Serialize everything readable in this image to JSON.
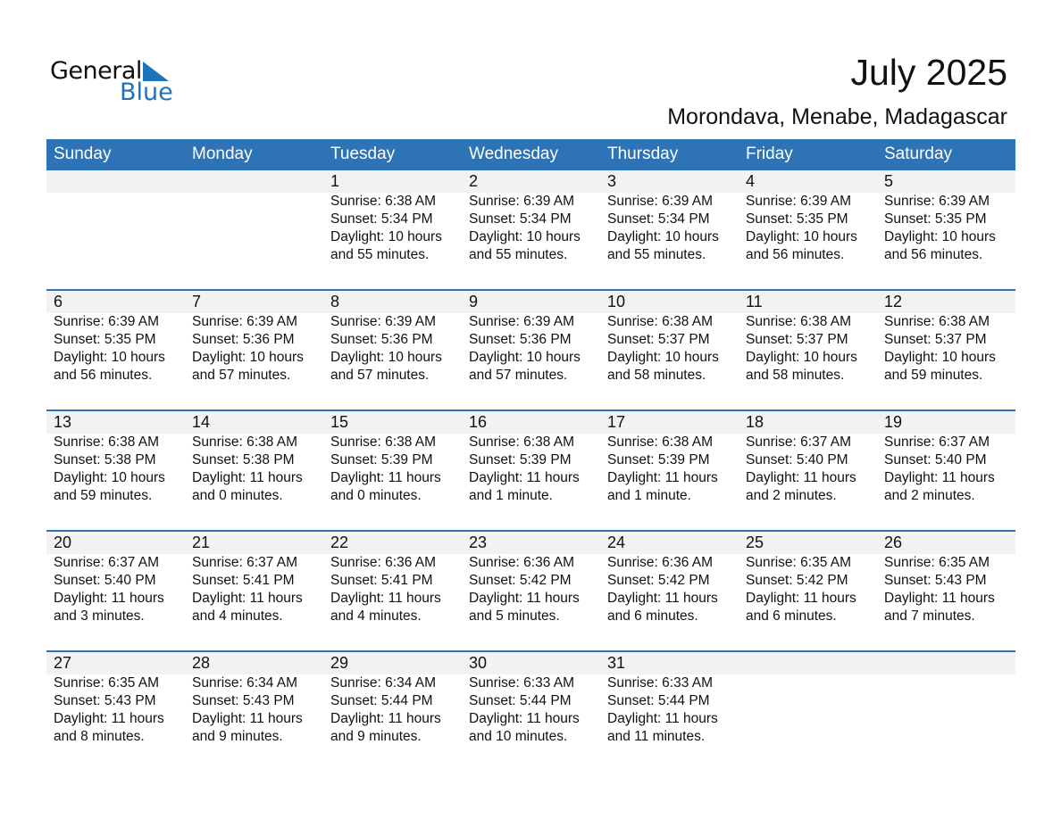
{
  "logo": {
    "line1": "General",
    "line2": "Blue",
    "color": "#1f73b8"
  },
  "title": "July 2025",
  "location": "Morondava, Menabe, Madagascar",
  "header_color": "#2e73b6",
  "weekdays": [
    "Sunday",
    "Monday",
    "Tuesday",
    "Wednesday",
    "Thursday",
    "Friday",
    "Saturday"
  ],
  "weeks": [
    [
      null,
      null,
      {
        "d": "1",
        "sr": "Sunrise: 6:38 AM",
        "ss": "Sunset: 5:34 PM",
        "dl": "Daylight: 10 hours",
        "dm": "and 55 minutes."
      },
      {
        "d": "2",
        "sr": "Sunrise: 6:39 AM",
        "ss": "Sunset: 5:34 PM",
        "dl": "Daylight: 10 hours",
        "dm": "and 55 minutes."
      },
      {
        "d": "3",
        "sr": "Sunrise: 6:39 AM",
        "ss": "Sunset: 5:34 PM",
        "dl": "Daylight: 10 hours",
        "dm": "and 55 minutes."
      },
      {
        "d": "4",
        "sr": "Sunrise: 6:39 AM",
        "ss": "Sunset: 5:35 PM",
        "dl": "Daylight: 10 hours",
        "dm": "and 56 minutes."
      },
      {
        "d": "5",
        "sr": "Sunrise: 6:39 AM",
        "ss": "Sunset: 5:35 PM",
        "dl": "Daylight: 10 hours",
        "dm": "and 56 minutes."
      }
    ],
    [
      {
        "d": "6",
        "sr": "Sunrise: 6:39 AM",
        "ss": "Sunset: 5:35 PM",
        "dl": "Daylight: 10 hours",
        "dm": "and 56 minutes."
      },
      {
        "d": "7",
        "sr": "Sunrise: 6:39 AM",
        "ss": "Sunset: 5:36 PM",
        "dl": "Daylight: 10 hours",
        "dm": "and 57 minutes."
      },
      {
        "d": "8",
        "sr": "Sunrise: 6:39 AM",
        "ss": "Sunset: 5:36 PM",
        "dl": "Daylight: 10 hours",
        "dm": "and 57 minutes."
      },
      {
        "d": "9",
        "sr": "Sunrise: 6:39 AM",
        "ss": "Sunset: 5:36 PM",
        "dl": "Daylight: 10 hours",
        "dm": "and 57 minutes."
      },
      {
        "d": "10",
        "sr": "Sunrise: 6:38 AM",
        "ss": "Sunset: 5:37 PM",
        "dl": "Daylight: 10 hours",
        "dm": "and 58 minutes."
      },
      {
        "d": "11",
        "sr": "Sunrise: 6:38 AM",
        "ss": "Sunset: 5:37 PM",
        "dl": "Daylight: 10 hours",
        "dm": "and 58 minutes."
      },
      {
        "d": "12",
        "sr": "Sunrise: 6:38 AM",
        "ss": "Sunset: 5:37 PM",
        "dl": "Daylight: 10 hours",
        "dm": "and 59 minutes."
      }
    ],
    [
      {
        "d": "13",
        "sr": "Sunrise: 6:38 AM",
        "ss": "Sunset: 5:38 PM",
        "dl": "Daylight: 10 hours",
        "dm": "and 59 minutes."
      },
      {
        "d": "14",
        "sr": "Sunrise: 6:38 AM",
        "ss": "Sunset: 5:38 PM",
        "dl": "Daylight: 11 hours",
        "dm": "and 0 minutes."
      },
      {
        "d": "15",
        "sr": "Sunrise: 6:38 AM",
        "ss": "Sunset: 5:39 PM",
        "dl": "Daylight: 11 hours",
        "dm": "and 0 minutes."
      },
      {
        "d": "16",
        "sr": "Sunrise: 6:38 AM",
        "ss": "Sunset: 5:39 PM",
        "dl": "Daylight: 11 hours",
        "dm": "and 1 minute."
      },
      {
        "d": "17",
        "sr": "Sunrise: 6:38 AM",
        "ss": "Sunset: 5:39 PM",
        "dl": "Daylight: 11 hours",
        "dm": "and 1 minute."
      },
      {
        "d": "18",
        "sr": "Sunrise: 6:37 AM",
        "ss": "Sunset: 5:40 PM",
        "dl": "Daylight: 11 hours",
        "dm": "and 2 minutes."
      },
      {
        "d": "19",
        "sr": "Sunrise: 6:37 AM",
        "ss": "Sunset: 5:40 PM",
        "dl": "Daylight: 11 hours",
        "dm": "and 2 minutes."
      }
    ],
    [
      {
        "d": "20",
        "sr": "Sunrise: 6:37 AM",
        "ss": "Sunset: 5:40 PM",
        "dl": "Daylight: 11 hours",
        "dm": "and 3 minutes."
      },
      {
        "d": "21",
        "sr": "Sunrise: 6:37 AM",
        "ss": "Sunset: 5:41 PM",
        "dl": "Daylight: 11 hours",
        "dm": "and 4 minutes."
      },
      {
        "d": "22",
        "sr": "Sunrise: 6:36 AM",
        "ss": "Sunset: 5:41 PM",
        "dl": "Daylight: 11 hours",
        "dm": "and 4 minutes."
      },
      {
        "d": "23",
        "sr": "Sunrise: 6:36 AM",
        "ss": "Sunset: 5:42 PM",
        "dl": "Daylight: 11 hours",
        "dm": "and 5 minutes."
      },
      {
        "d": "24",
        "sr": "Sunrise: 6:36 AM",
        "ss": "Sunset: 5:42 PM",
        "dl": "Daylight: 11 hours",
        "dm": "and 6 minutes."
      },
      {
        "d": "25",
        "sr": "Sunrise: 6:35 AM",
        "ss": "Sunset: 5:42 PM",
        "dl": "Daylight: 11 hours",
        "dm": "and 6 minutes."
      },
      {
        "d": "26",
        "sr": "Sunrise: 6:35 AM",
        "ss": "Sunset: 5:43 PM",
        "dl": "Daylight: 11 hours",
        "dm": "and 7 minutes."
      }
    ],
    [
      {
        "d": "27",
        "sr": "Sunrise: 6:35 AM",
        "ss": "Sunset: 5:43 PM",
        "dl": "Daylight: 11 hours",
        "dm": "and 8 minutes."
      },
      {
        "d": "28",
        "sr": "Sunrise: 6:34 AM",
        "ss": "Sunset: 5:43 PM",
        "dl": "Daylight: 11 hours",
        "dm": "and 9 minutes."
      },
      {
        "d": "29",
        "sr": "Sunrise: 6:34 AM",
        "ss": "Sunset: 5:44 PM",
        "dl": "Daylight: 11 hours",
        "dm": "and 9 minutes."
      },
      {
        "d": "30",
        "sr": "Sunrise: 6:33 AM",
        "ss": "Sunset: 5:44 PM",
        "dl": "Daylight: 11 hours",
        "dm": "and 10 minutes."
      },
      {
        "d": "31",
        "sr": "Sunrise: 6:33 AM",
        "ss": "Sunset: 5:44 PM",
        "dl": "Daylight: 11 hours",
        "dm": "and 11 minutes."
      },
      null,
      null
    ]
  ]
}
